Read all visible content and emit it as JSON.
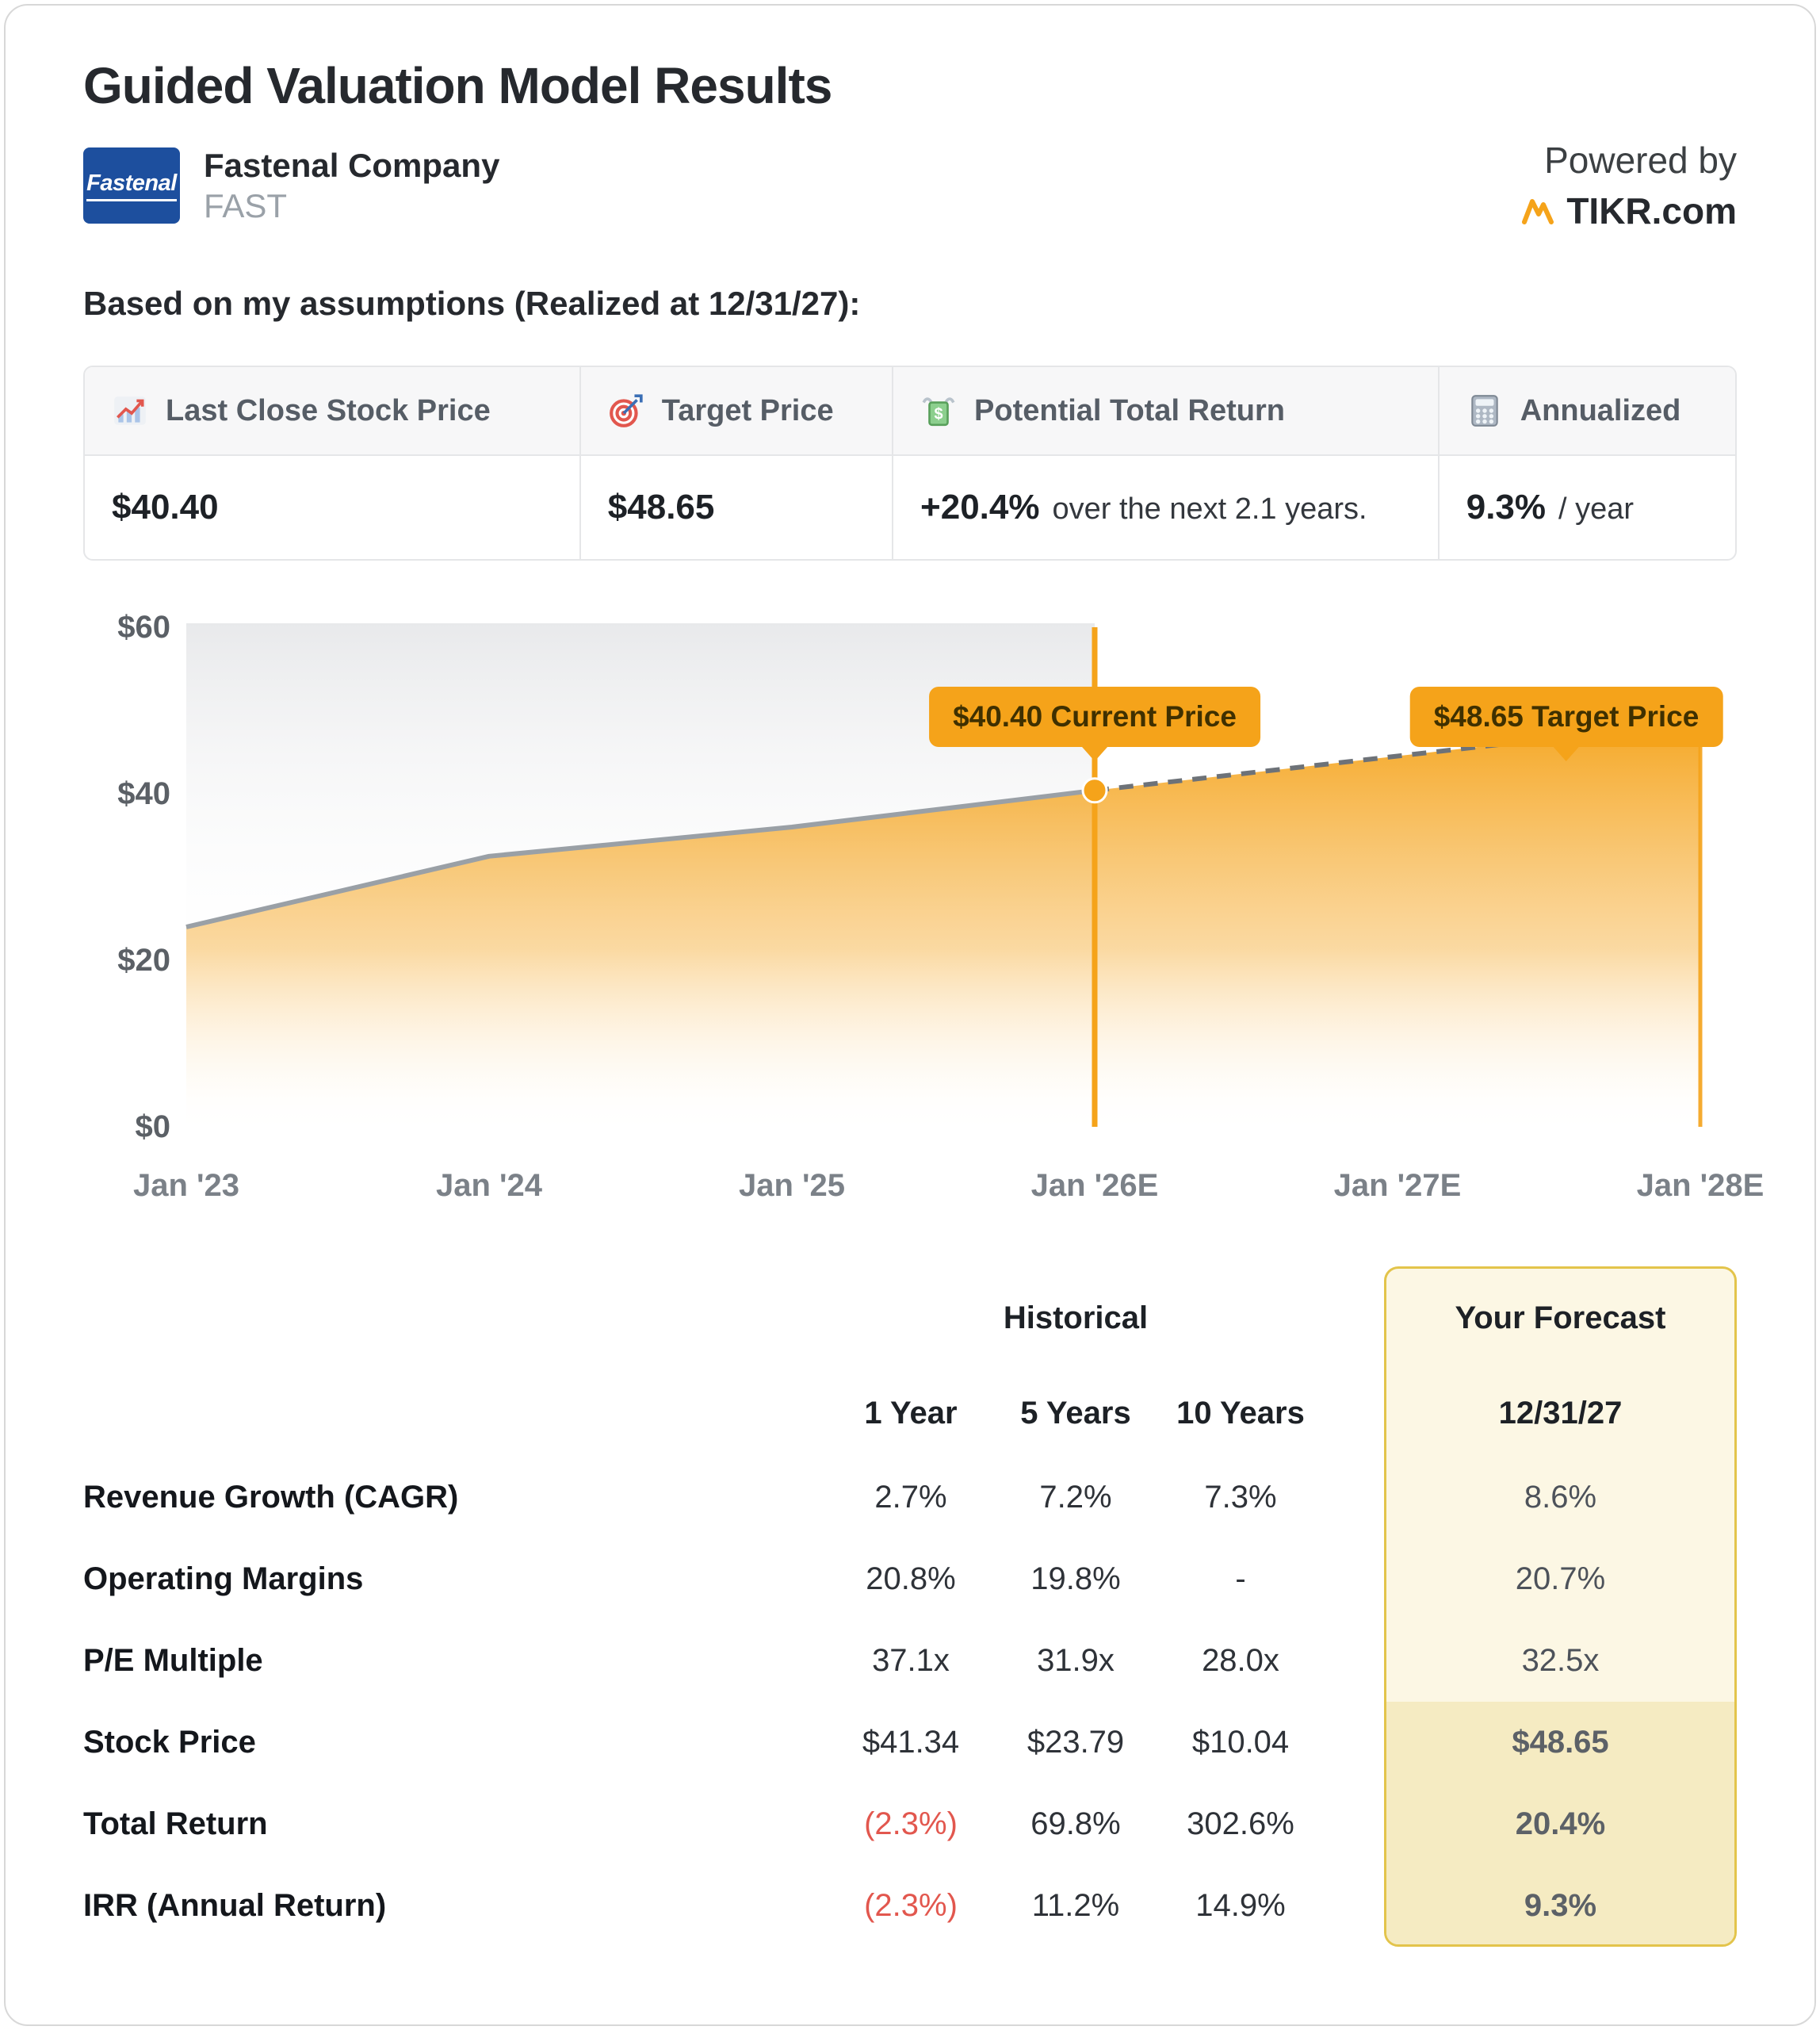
{
  "header": {
    "title": "Guided Valuation Model Results",
    "company": {
      "name": "Fastenal Company",
      "ticker": "FAST",
      "logo_text": "Fastenal"
    },
    "powered_by": "Powered by",
    "brand": "TIKR.com"
  },
  "assumptions_heading": "Based on my assumptions (Realized at 12/31/27):",
  "summary_cards": [
    {
      "icon": "line-chart-icon",
      "label": "Last Close Stock Price",
      "value": "$40.40",
      "note": ""
    },
    {
      "icon": "target-icon",
      "label": "Target Price",
      "value": "$48.65",
      "note": ""
    },
    {
      "icon": "money-wings-icon",
      "label": "Potential Total Return",
      "value": "+20.4%",
      "note": "over the next 2.1 years."
    },
    {
      "icon": "abacus-icon",
      "label": "Annualized",
      "value": "9.3%",
      "note": "/ year"
    }
  ],
  "chart_data": {
    "type": "area",
    "title": "",
    "x_ticks": [
      "Jan '23",
      "Jan '24",
      "Jan '25",
      "Jan '26E",
      "Jan '27E",
      "Jan '28E"
    ],
    "y_ticks": [
      "$0",
      "$20",
      "$40",
      "$60"
    ],
    "x_range": [
      2023,
      2028
    ],
    "ylim": [
      0,
      60
    ],
    "grid": false,
    "legend": "none",
    "accent_color": "#F5A31A",
    "series": [
      {
        "name": "Historical price",
        "style": "solid",
        "points": [
          [
            2023,
            24.0
          ],
          [
            2024,
            32.5
          ],
          [
            2025,
            36.0
          ],
          [
            2026,
            40.4
          ]
        ]
      },
      {
        "name": "Forecast price",
        "style": "dashed",
        "points": [
          [
            2026,
            40.4
          ],
          [
            2028,
            48.65
          ]
        ]
      }
    ],
    "annotations": [
      {
        "label": "$40.40 Current Price",
        "type": "pill",
        "x": 2026,
        "y": 40.4
      },
      {
        "label": "$48.65 Target Price",
        "type": "pill",
        "x": 2028,
        "y": 48.65
      }
    ]
  },
  "table": {
    "group_header": "Historical",
    "forecast_header": "Your Forecast",
    "columns": [
      "1 Year",
      "5 Years",
      "10 Years"
    ],
    "forecast_column": "12/31/27",
    "rows": [
      {
        "label": "Revenue Growth (CAGR)",
        "values": [
          "2.7%",
          "7.2%",
          "7.3%"
        ],
        "forecast": "8.6%"
      },
      {
        "label": "Operating Margins",
        "values": [
          "20.8%",
          "19.8%",
          "-"
        ],
        "forecast": "20.7%"
      },
      {
        "label": "P/E Multiple",
        "values": [
          "37.1x",
          "31.9x",
          "28.0x"
        ],
        "forecast": "32.5x"
      },
      {
        "label": "Stock Price",
        "values": [
          "$41.34",
          "$23.79",
          "$10.04"
        ],
        "forecast": "$48.65"
      },
      {
        "label": "Total Return",
        "values": [
          "(2.3%)",
          "69.8%",
          "302.6%"
        ],
        "forecast": "20.4%"
      },
      {
        "label": "IRR (Annual Return)",
        "values": [
          "(2.3%)",
          "11.2%",
          "14.9%"
        ],
        "forecast": "9.3%"
      }
    ]
  }
}
